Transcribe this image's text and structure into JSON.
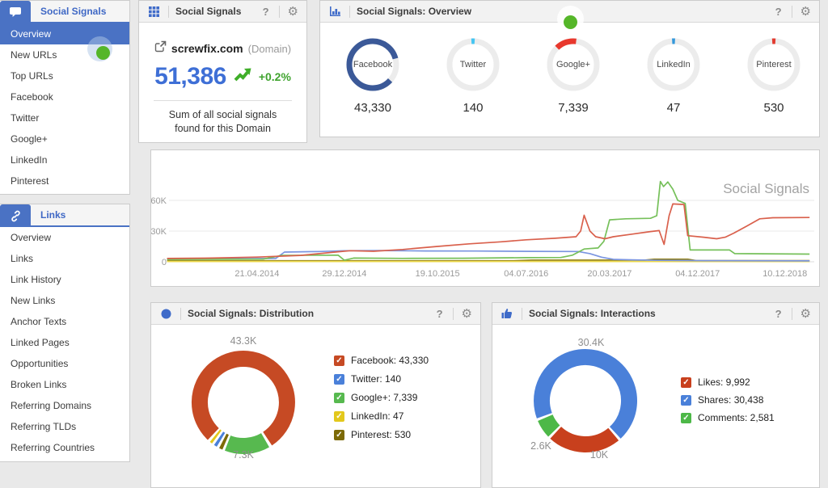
{
  "sidebar": {
    "sections": [
      {
        "label": "Social Signals",
        "icon": "chat-bubble-icon",
        "items": [
          {
            "label": "Overview",
            "selected": true
          },
          {
            "label": "New URLs",
            "notification": true
          },
          {
            "label": "Top URLs"
          },
          {
            "label": "Facebook"
          },
          {
            "label": "Twitter"
          },
          {
            "label": "Google+"
          },
          {
            "label": "LinkedIn"
          },
          {
            "label": "Pinterest"
          }
        ]
      },
      {
        "label": "Links",
        "icon": "link-icon",
        "items": [
          {
            "label": "Overview"
          },
          {
            "label": "Links"
          },
          {
            "label": "Link History"
          },
          {
            "label": "New Links"
          },
          {
            "label": "Anchor Texts"
          },
          {
            "label": "Linked Pages"
          },
          {
            "label": "Opportunities"
          },
          {
            "label": "Broken Links"
          },
          {
            "label": "Referring Domains"
          },
          {
            "label": "Referring TLDs"
          },
          {
            "label": "Referring Countries"
          }
        ]
      }
    ]
  },
  "summary_card": {
    "title": "Social Signals",
    "help": "?",
    "domain": "screwfix.com",
    "domain_type": "(Domain)",
    "total": "51,386",
    "trend": "+0.2%",
    "description": "Sum of all social signals found for this Domain"
  },
  "overview_card": {
    "title": "Social Signals: Overview",
    "help": "?",
    "total": 51386,
    "platforms": [
      {
        "name": "Facebook",
        "value": 43330,
        "value_label": "43,330",
        "color": "#3b5998",
        "arc_deg": 303,
        "arc_start": 132
      },
      {
        "name": "Twitter",
        "value": 140,
        "value_label": "140",
        "color": "#45c5f2",
        "arc_deg": 8,
        "arc_start": -4
      },
      {
        "name": "Google+",
        "value": 7339,
        "value_label": "7,339",
        "color": "#e8382d",
        "arc_deg": 51,
        "arc_start": -44
      },
      {
        "name": "LinkedIn",
        "value": 47,
        "value_label": "47",
        "color": "#3498db",
        "arc_deg": 7,
        "arc_start": -3.5
      },
      {
        "name": "Pinterest",
        "value": 530,
        "value_label": "530",
        "color": "#e23b30",
        "arc_deg": 8,
        "arc_start": -4
      }
    ]
  },
  "distribution_card": {
    "title": "Social Signals: Distribution",
    "help": "?"
  },
  "interactions_card": {
    "title": "Social Signals: Interactions",
    "help": "?"
  },
  "chart_data": [
    {
      "type": "line",
      "title": "Social Signals",
      "grid": true,
      "legend_position": "none",
      "x_ticks": [
        "21.04.2014",
        "29.12.2014",
        "19.10.2015",
        "04.07.2016",
        "20.03.2017",
        "04.12.2017",
        "10.12.2018"
      ],
      "x_tick_t": [
        0.145,
        0.279,
        0.422,
        0.558,
        0.686,
        0.821,
        0.955
      ],
      "y_ticks": [
        {
          "label": "0",
          "value": 0
        },
        {
          "label": "30K",
          "value": 30000
        },
        {
          "label": "60K",
          "value": 60000
        }
      ],
      "ylim": [
        0,
        95000
      ],
      "x_map": {
        "years": [
          2013.25,
          2014.3,
          2015.0,
          2015.8,
          2016.5,
          2017.22,
          2017.93,
          2018.94,
          2019.25
        ],
        "t": [
          0,
          0.145,
          0.279,
          0.422,
          0.558,
          0.686,
          0.821,
          0.955,
          1.0
        ]
      },
      "series": [
        {
          "name": "Pinterest",
          "color": "#8f7e16",
          "points": [
            [
              2013.3,
              1000
            ],
            [
              2016.4,
              1000
            ],
            [
              2016.55,
              1600
            ],
            [
              2017.5,
              1600
            ],
            [
              2017.58,
              2500
            ],
            [
              2017.85,
              2500
            ],
            [
              2017.92,
              1100
            ],
            [
              2019.2,
              1100
            ]
          ]
        },
        {
          "name": "LinkedIn",
          "color": "#ecd84c",
          "points": [
            [
              2013.3,
              300
            ],
            [
              2019.2,
              300
            ]
          ]
        },
        {
          "name": "Twitter",
          "color": "#7b95e0",
          "points": [
            [
              2013.3,
              2600
            ],
            [
              2014.05,
              3000
            ],
            [
              2014.45,
              3200
            ],
            [
              2014.52,
              9500
            ],
            [
              2014.8,
              10000
            ],
            [
              2015.0,
              10800
            ],
            [
              2015.3,
              11000
            ],
            [
              2015.7,
              10600
            ],
            [
              2016.1,
              10500
            ],
            [
              2016.55,
              10200
            ],
            [
              2016.95,
              10000
            ],
            [
              2017.05,
              8000
            ],
            [
              2017.15,
              4500
            ],
            [
              2017.25,
              2400
            ],
            [
              2017.4,
              1900
            ],
            [
              2017.6,
              1400
            ],
            [
              2018.0,
              1100
            ],
            [
              2019.2,
              900
            ]
          ]
        },
        {
          "name": "Google+",
          "color": "#76c05a",
          "points": [
            [
              2013.3,
              2300
            ],
            [
              2014.35,
              2600
            ],
            [
              2014.5,
              6200
            ],
            [
              2014.95,
              6500
            ],
            [
              2015.0,
              1500
            ],
            [
              2015.08,
              3600
            ],
            [
              2015.5,
              3300
            ],
            [
              2016.0,
              3500
            ],
            [
              2016.5,
              4000
            ],
            [
              2016.8,
              4200
            ],
            [
              2016.9,
              6500
            ],
            [
              2017.0,
              12500
            ],
            [
              2017.12,
              13500
            ],
            [
              2017.17,
              20000
            ],
            [
              2017.22,
              41000
            ],
            [
              2017.35,
              42000
            ],
            [
              2017.55,
              42500
            ],
            [
              2017.6,
              45000
            ],
            [
              2017.63,
              78500
            ],
            [
              2017.655,
              73500
            ],
            [
              2017.69,
              78000
            ],
            [
              2017.73,
              71000
            ],
            [
              2017.77,
              60000
            ],
            [
              2017.83,
              57000
            ],
            [
              2017.87,
              11500
            ],
            [
              2018.3,
              11500
            ],
            [
              2018.36,
              8000
            ],
            [
              2019.2,
              7500
            ]
          ]
        },
        {
          "name": "Facebook",
          "color": "#d9604c",
          "points": [
            [
              2013.3,
              3200
            ],
            [
              2013.8,
              3600
            ],
            [
              2014.3,
              4600
            ],
            [
              2014.65,
              6200
            ],
            [
              2014.95,
              9800
            ],
            [
              2015.05,
              10800
            ],
            [
              2015.25,
              10300
            ],
            [
              2015.5,
              12000
            ],
            [
              2015.8,
              15000
            ],
            [
              2016.05,
              17500
            ],
            [
              2016.3,
              19500
            ],
            [
              2016.5,
              21500
            ],
            [
              2016.75,
              23000
            ],
            [
              2016.93,
              24500
            ],
            [
              2016.97,
              30000
            ],
            [
              2017.0,
              45500
            ],
            [
              2017.05,
              30000
            ],
            [
              2017.1,
              24500
            ],
            [
              2017.18,
              22500
            ],
            [
              2017.25,
              24500
            ],
            [
              2017.4,
              27000
            ],
            [
              2017.55,
              29500
            ],
            [
              2017.62,
              30500
            ],
            [
              2017.66,
              17000
            ],
            [
              2017.7,
              45000
            ],
            [
              2017.73,
              56500
            ],
            [
              2017.82,
              56000
            ],
            [
              2017.85,
              25500
            ],
            [
              2018.0,
              24000
            ],
            [
              2018.15,
              22500
            ],
            [
              2018.25,
              24000
            ],
            [
              2018.35,
              28000
            ],
            [
              2018.5,
              35000
            ],
            [
              2018.65,
              42000
            ],
            [
              2018.8,
              43000
            ],
            [
              2019.2,
              43300
            ]
          ]
        }
      ]
    },
    {
      "type": "pie",
      "title": "Social Signals: Distribution",
      "start_deg": 150,
      "gap_deg": 3,
      "slices": [
        {
          "label": "Google+",
          "value": 7339,
          "color": "#57b94f",
          "deg": 51
        },
        {
          "label": "Pinterest",
          "value": 530,
          "color": "#7c6a07",
          "deg": 4
        },
        {
          "label": "Twitter",
          "value": 140,
          "color": "#4a80d9",
          "deg": 3.5
        },
        {
          "label": "LinkedIn",
          "value": 47,
          "color": "#e3c81c",
          "deg": 3
        },
        {
          "label": "Facebook",
          "value": 43330,
          "color": "#c64a24",
          "deg": 283
        }
      ],
      "legend": [
        {
          "text": "Facebook: 43,330",
          "color": "#c64a24"
        },
        {
          "text": "Twitter: 140",
          "color": "#4a80d9"
        },
        {
          "text": "Google+: 7,339",
          "color": "#57b94f"
        },
        {
          "text": "LinkedIn: 47",
          "color": "#e3c81c"
        },
        {
          "text": "Pinterest: 530",
          "color": "#7c6a07"
        }
      ],
      "callouts": [
        {
          "text": "43.3K"
        },
        {
          "text": "7.3K"
        }
      ]
    },
    {
      "type": "pie",
      "title": "Social Signals: Interactions",
      "start_deg": 140,
      "gap_deg": 3,
      "slices": [
        {
          "label": "Likes",
          "value": 9992,
          "color": "#c8401d",
          "deg": 83
        },
        {
          "label": "Comments",
          "value": 2581,
          "color": "#4db848",
          "deg": 21
        },
        {
          "label": "Shares",
          "value": 30438,
          "color": "#4a80d9",
          "deg": 247
        }
      ],
      "legend": [
        {
          "text": "Likes: 9,992",
          "color": "#c8401d"
        },
        {
          "text": "Shares: 30,438",
          "color": "#4a80d9"
        },
        {
          "text": "Comments: 2,581",
          "color": "#4db848"
        }
      ],
      "callouts": [
        {
          "text": "30.4K"
        },
        {
          "text": "2.6K"
        },
        {
          "text": "10K"
        }
      ]
    }
  ]
}
